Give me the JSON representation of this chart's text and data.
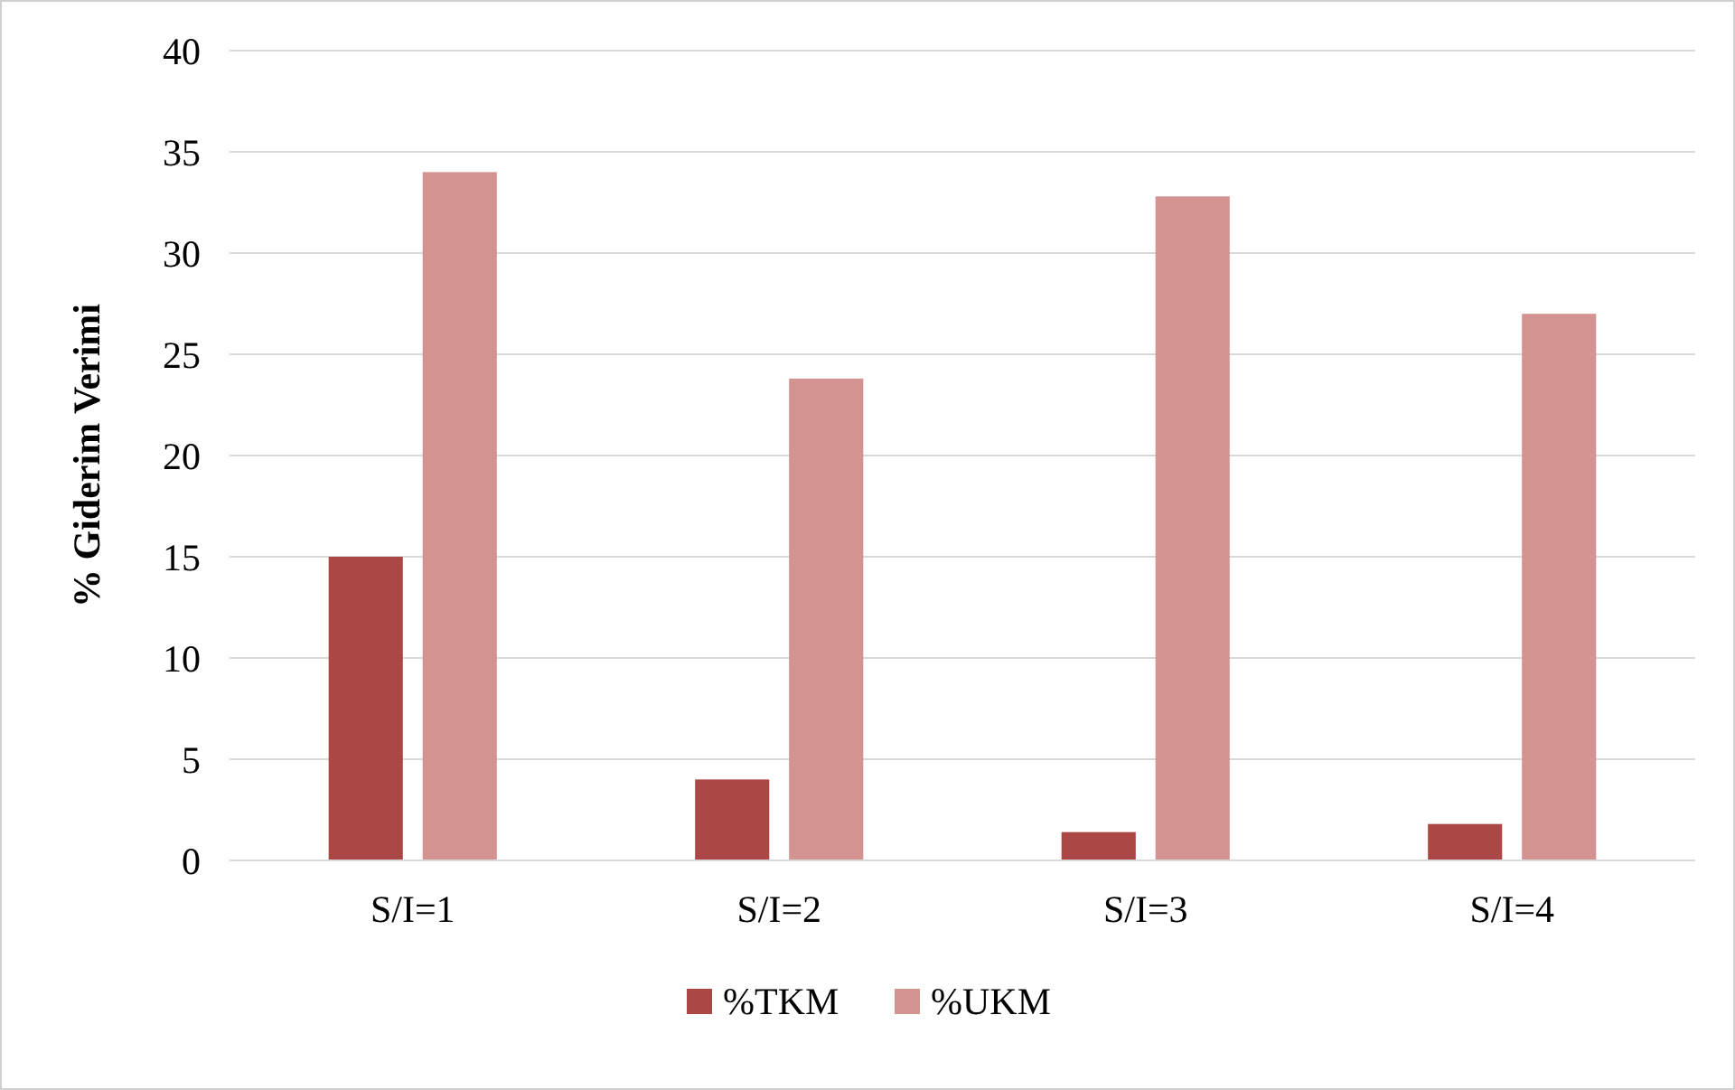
{
  "chart_data": {
    "type": "bar",
    "ylabel": "% Giderim Verimi",
    "categories": [
      "S/I=1",
      "S/I=2",
      "S/I=3",
      "S/I=4"
    ],
    "series": [
      {
        "name": "%TKM",
        "color": "#ab4845",
        "values": [
          15,
          4,
          1.4,
          1.8
        ]
      },
      {
        "name": "%UKM",
        "color": "#d39391",
        "values": [
          34,
          23.8,
          32.8,
          27
        ]
      }
    ],
    "ylim": [
      0,
      40
    ],
    "yticks": [
      0,
      5,
      10,
      15,
      20,
      25,
      30,
      35,
      40
    ],
    "grid": "y",
    "legend": "bottom"
  }
}
